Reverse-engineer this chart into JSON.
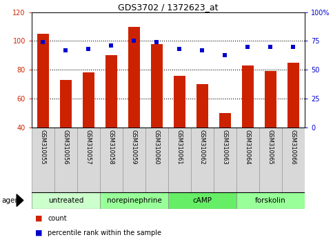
{
  "title": "GDS3702 / 1372623_at",
  "samples": [
    "GSM310055",
    "GSM310056",
    "GSM310057",
    "GSM310058",
    "GSM310059",
    "GSM310060",
    "GSM310061",
    "GSM310062",
    "GSM310063",
    "GSM310064",
    "GSM310065",
    "GSM310066"
  ],
  "bar_values": [
    105,
    73,
    78,
    90,
    110,
    98,
    76,
    70,
    50,
    83,
    79,
    85
  ],
  "dot_values": [
    74,
    67,
    68,
    71,
    75,
    74,
    68,
    67,
    63,
    70,
    70,
    70
  ],
  "bar_color": "#cc2200",
  "dot_color": "#0000cc",
  "ylim_left": [
    40,
    120
  ],
  "ylim_right": [
    0,
    100
  ],
  "yticks_left": [
    40,
    60,
    80,
    100,
    120
  ],
  "yticks_right": [
    0,
    25,
    50,
    75,
    100
  ],
  "yticklabels_right": [
    "0",
    "25",
    "50",
    "75",
    "100%"
  ],
  "groups": [
    {
      "label": "untreated",
      "start": 0,
      "end": 3,
      "color": "#ccffcc"
    },
    {
      "label": "norepinephrine",
      "start": 3,
      "end": 6,
      "color": "#99ff99"
    },
    {
      "label": "cAMP",
      "start": 6,
      "end": 9,
      "color": "#66ee66"
    },
    {
      "label": "forskolin",
      "start": 9,
      "end": 12,
      "color": "#99ff99"
    }
  ],
  "legend_count_label": "count",
  "legend_pct_label": "percentile rank within the sample",
  "agent_label": "agent",
  "sample_box_color": "#d8d8d8",
  "bar_bottom": 40
}
